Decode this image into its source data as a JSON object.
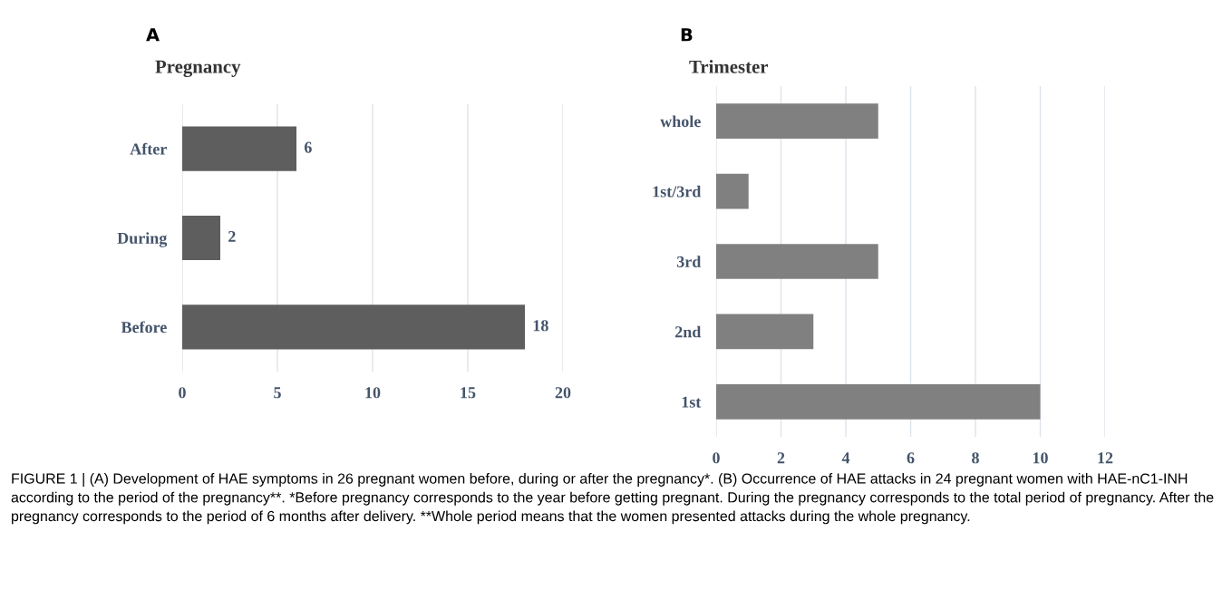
{
  "chart_data": [
    {
      "type": "bar",
      "orientation": "horizontal",
      "title": "Pregnancy",
      "categories": [
        "After",
        "During",
        "Before"
      ],
      "values": [
        6,
        2,
        18
      ],
      "color": "#5e5e5e",
      "xlim": [
        0,
        20
      ],
      "xticks": [
        0,
        5,
        10,
        15,
        20
      ],
      "grid": "x",
      "data_labels": true,
      "annotations": [
        "A"
      ]
    },
    {
      "type": "bar",
      "orientation": "horizontal",
      "title": "Trimester",
      "categories": [
        "whole",
        "1st/3rd",
        "3rd",
        "2nd",
        "1st"
      ],
      "values": [
        5,
        1,
        5,
        3,
        10
      ],
      "color": "#808080",
      "xlim": [
        0,
        12
      ],
      "xticks": [
        0,
        2,
        4,
        6,
        8,
        10,
        12
      ],
      "grid": "x",
      "annotations": [
        "B",
        "FIGURE 1 | (A) Development of HAE symptoms in 26 pregnant women before, during or after the pregnancy*. (B) Occurrence of HAE attacks in 24 pregnant women with HAE-nC1-INH according to the period of the pregnancy**. *Before pregnancy corresponds to the year before getting pregnant. During the pregnancy corresponds to the total period of pregnancy. After the pregnancy corresponds to the period of 6 months after delivery. **Whole period means that the women presented attacks during the whole pregnancy."
      ]
    }
  ]
}
